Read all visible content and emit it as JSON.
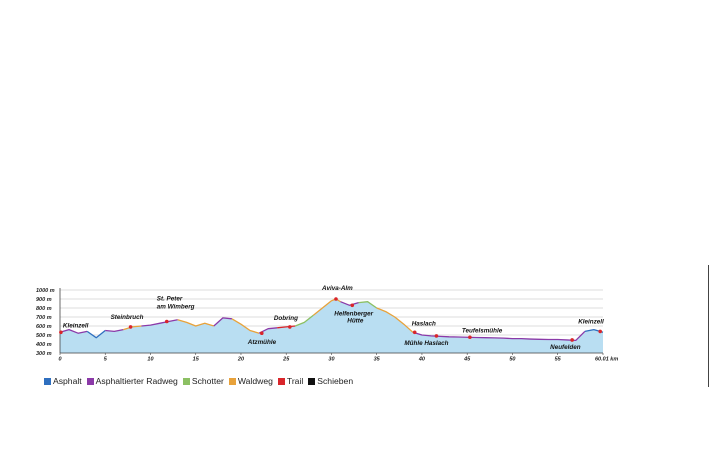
{
  "colors": {
    "asphalt": "#2f6fbf",
    "radweg": "#8b3aa8",
    "schotter": "#8cc063",
    "waldweg": "#e8a23b",
    "trail": "#d9262b",
    "schieben": "#111111",
    "fill": "#b9def2",
    "grid": "#bdbdbd",
    "axis": "#444444"
  },
  "legend": [
    {
      "label": "Asphalt",
      "color": "#2f6fbf"
    },
    {
      "label": "Asphaltierter Radweg",
      "color": "#8b3aa8"
    },
    {
      "label": "Schotter",
      "color": "#8cc063"
    },
    {
      "label": "Waldweg",
      "color": "#e8a23b"
    },
    {
      "label": "Trail",
      "color": "#d9262b"
    },
    {
      "label": "Schieben",
      "color": "#111111"
    }
  ],
  "chart_data": {
    "type": "area",
    "title": "",
    "xlabel": "",
    "ylabel": "",
    "xlim": [
      0,
      60.01
    ],
    "ylim": [
      300,
      1000
    ],
    "x_ticks": [
      0,
      5,
      10,
      15,
      20,
      25,
      30,
      35,
      40,
      45,
      50,
      55,
      60.01
    ],
    "x_tick_labels": [
      "0",
      "5",
      "10",
      "15",
      "20",
      "25",
      "30",
      "35",
      "40",
      "45",
      "50",
      "55",
      "60.01 km"
    ],
    "y_ticks": [
      300,
      400,
      500,
      600,
      700,
      800,
      900,
      1000
    ],
    "y_tick_labels": [
      "300 m",
      "400 m",
      "500 m",
      "600 m",
      "700 m",
      "800 m",
      "900 m",
      "1000 m"
    ],
    "grid": true,
    "legend_position": "bottom-left",
    "series": [
      {
        "x": [
          0,
          1,
          2,
          3,
          4,
          5,
          6,
          7,
          8,
          9,
          10,
          11,
          12,
          13,
          14,
          15,
          16,
          17,
          18,
          19,
          20,
          21,
          22,
          23,
          24,
          25,
          26,
          27,
          28,
          29,
          30,
          30.5,
          31,
          32,
          33,
          34,
          35,
          36,
          37,
          38,
          39,
          40,
          41,
          42,
          43,
          44,
          45,
          46,
          47,
          48,
          49,
          50,
          51,
          52,
          53,
          54,
          55,
          56,
          57,
          58,
          59,
          60.01
        ],
        "y": [
          530,
          560,
          520,
          540,
          470,
          550,
          540,
          560,
          590,
          600,
          610,
          630,
          650,
          670,
          640,
          600,
          630,
          600,
          690,
          680,
          620,
          550,
          520,
          570,
          580,
          590,
          600,
          640,
          720,
          800,
          880,
          900,
          870,
          830,
          860,
          870,
          800,
          760,
          700,
          620,
          530,
          500,
          490,
          485,
          480,
          478,
          475,
          472,
          470,
          468,
          465,
          460,
          460,
          455,
          452,
          450,
          450,
          445,
          440,
          540,
          560,
          530
        ]
      }
    ],
    "surface_segments": [
      {
        "from": 0,
        "to": 3,
        "type": "Asphaltierter Radweg"
      },
      {
        "from": 3,
        "to": 5,
        "type": "Asphalt"
      },
      {
        "from": 5,
        "to": 7,
        "type": "Asphaltierter Radweg"
      },
      {
        "from": 7,
        "to": 9,
        "type": "Waldweg"
      },
      {
        "from": 9,
        "to": 13,
        "type": "Asphaltierter Radweg"
      },
      {
        "from": 13,
        "to": 17,
        "type": "Waldweg"
      },
      {
        "from": 17,
        "to": 19,
        "type": "Asphaltierter Radweg"
      },
      {
        "from": 19,
        "to": 22,
        "type": "Waldweg"
      },
      {
        "from": 22,
        "to": 24,
        "type": "Asphaltierter Radweg"
      },
      {
        "from": 24,
        "to": 26,
        "type": "Trail"
      },
      {
        "from": 26,
        "to": 28,
        "type": "Schotter"
      },
      {
        "from": 28,
        "to": 31,
        "type": "Waldweg"
      },
      {
        "from": 31,
        "to": 33,
        "type": "Asphaltierter Radweg"
      },
      {
        "from": 33,
        "to": 35,
        "type": "Schotter"
      },
      {
        "from": 35,
        "to": 39,
        "type": "Waldweg"
      },
      {
        "from": 39,
        "to": 58,
        "type": "Asphaltierter Radweg"
      },
      {
        "from": 58,
        "to": 60.01,
        "type": "Asphalt"
      }
    ],
    "annotations": [
      {
        "text": "Kleinzell",
        "x": 0.1,
        "y": 530
      },
      {
        "text": "Steinbruch",
        "x": 7.8,
        "y": 590
      },
      {
        "text": "St. Peter",
        "x": 11.8,
        "y": 650
      },
      {
        "text": "am Wimberg",
        "x": 11.8,
        "y": 650
      },
      {
        "text": "Atzmühle",
        "x": 22.3,
        "y": 520
      },
      {
        "text": "Dobring",
        "x": 25.4,
        "y": 590
      },
      {
        "text": "Aviva-Alm",
        "x": 30.5,
        "y": 900
      },
      {
        "text": "Helfenberger",
        "x": 32.3,
        "y": 830
      },
      {
        "text": "Hütte",
        "x": 32.3,
        "y": 830
      },
      {
        "text": "Haslach",
        "x": 39.2,
        "y": 530
      },
      {
        "text": "Mühle Haslach",
        "x": 41.6,
        "y": 490
      },
      {
        "text": "Teufelsmühle",
        "x": 45.3,
        "y": 475
      },
      {
        "text": "Neufelden",
        "x": 56.6,
        "y": 445
      },
      {
        "text": "Kleinzell",
        "x": 59.7,
        "y": 540
      }
    ]
  }
}
